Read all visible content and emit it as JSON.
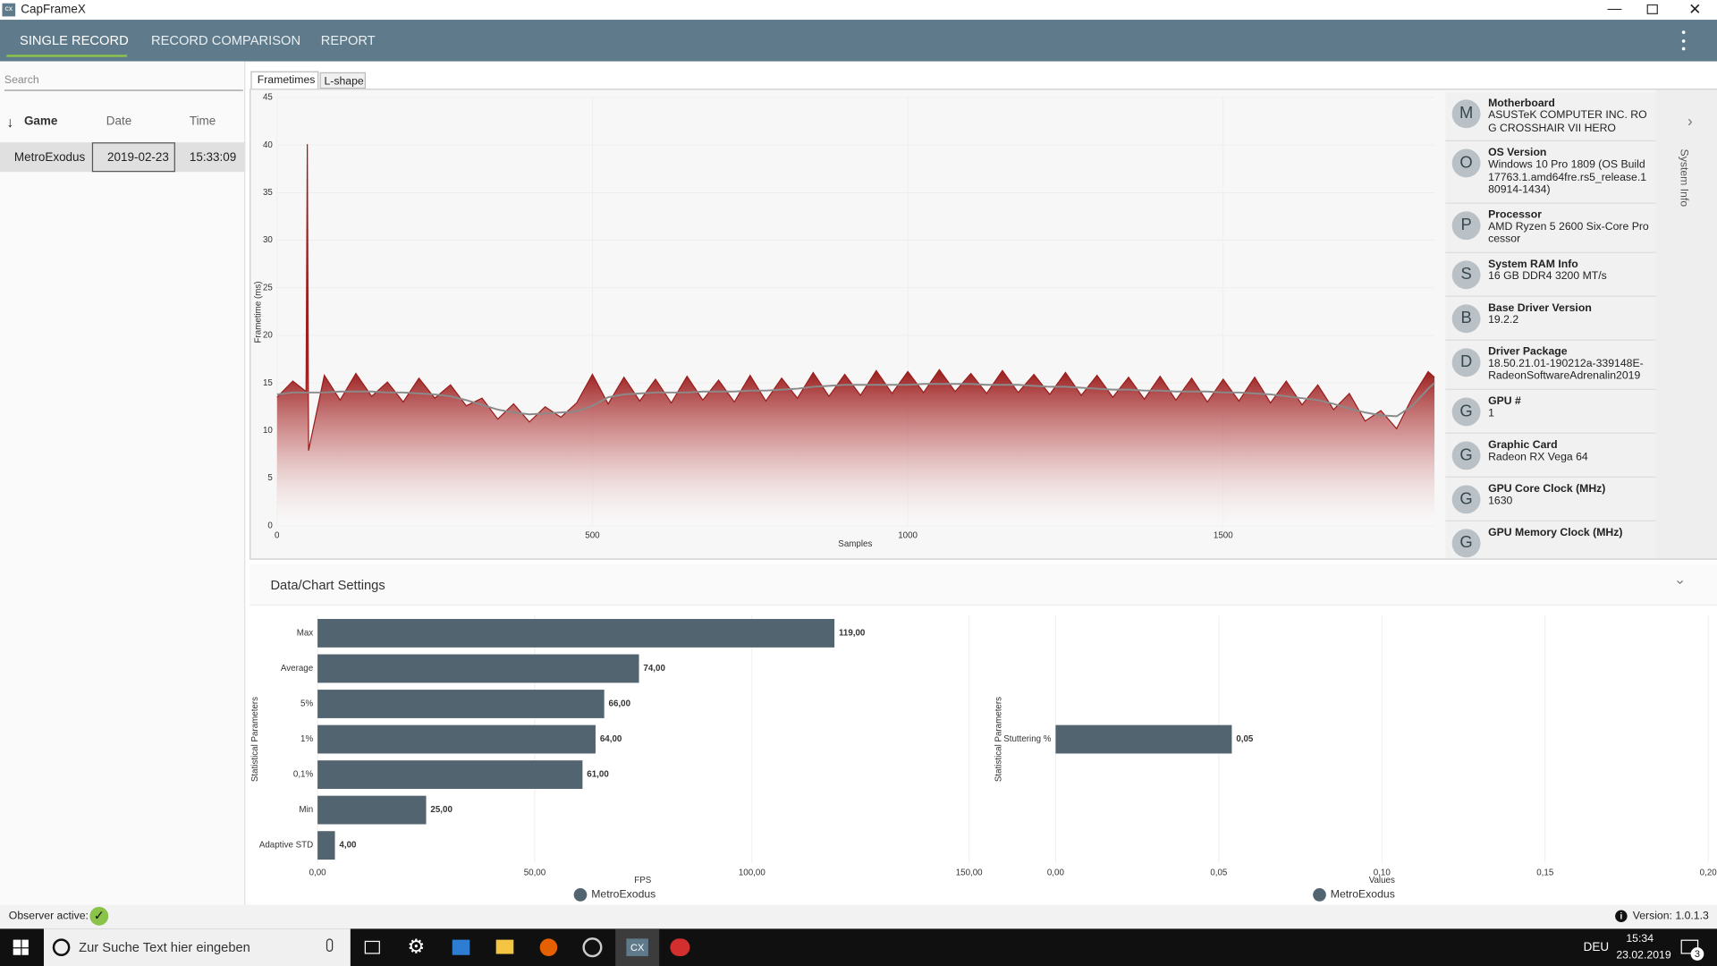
{
  "window": {
    "title": "CapFrameX"
  },
  "nav": {
    "tabs": [
      "SINGLE RECORD",
      "RECORD COMPARISON",
      "REPORT"
    ]
  },
  "sidebar": {
    "search": "Search",
    "columns": [
      "Game",
      "Date",
      "Time"
    ],
    "rows": [
      [
        "MetroExodus",
        "2019-02-23",
        "15:33:09"
      ]
    ]
  },
  "chart_tabs": [
    "Frametimes",
    "L-shape"
  ],
  "system_info": {
    "title": "System Info",
    "items": [
      {
        "icon": "M",
        "label": "Motherboard",
        "value": "ASUSTeK COMPUTER INC. ROG CROSSHAIR VII HERO"
      },
      {
        "icon": "O",
        "label": "OS Version",
        "value": "Windows 10 Pro 1809 (OS Build 17763.1.amd64fre.rs5_release.180914-1434)"
      },
      {
        "icon": "P",
        "label": "Processor",
        "value": "AMD Ryzen 5 2600 Six-Core Processor"
      },
      {
        "icon": "S",
        "label": "System RAM Info",
        "value": "16 GB DDR4 3200 MT/s"
      },
      {
        "icon": "B",
        "label": "Base Driver Version",
        "value": "19.2.2"
      },
      {
        "icon": "D",
        "label": "Driver Package",
        "value": "18.50.21.01-190212a-339148E-RadeonSoftwareAdrenalin2019"
      },
      {
        "icon": "G",
        "label": "GPU #",
        "value": "1"
      },
      {
        "icon": "G",
        "label": "Graphic Card",
        "value": "Radeon RX Vega 64"
      },
      {
        "icon": "G",
        "label": "GPU Core Clock (MHz)",
        "value": "1630"
      },
      {
        "icon": "G",
        "label": "GPU Memory Clock (MHz)"
      }
    ]
  },
  "settings": {
    "title": "Data/Chart Settings"
  },
  "chart_data": [
    {
      "type": "line",
      "x_label": "Samples",
      "y_label": "Frametime (ms)",
      "grid": true,
      "x": [
        0,
        25,
        46,
        48,
        50,
        75,
        100,
        125,
        150,
        175,
        200,
        225,
        250,
        275,
        300,
        325,
        350,
        375,
        400,
        425,
        450,
        475,
        500,
        525,
        550,
        575,
        600,
        625,
        650,
        675,
        700,
        725,
        750,
        775,
        800,
        825,
        850,
        875,
        900,
        925,
        950,
        975,
        1000,
        1025,
        1050,
        1075,
        1100,
        1125,
        1150,
        1175,
        1200,
        1225,
        1250,
        1275,
        1300,
        1325,
        1350,
        1375,
        1400,
        1425,
        1450,
        1475,
        1500,
        1525,
        1550,
        1575,
        1600,
        1625,
        1650,
        1675,
        1700,
        1725,
        1750,
        1775,
        1800,
        1825,
        1835
      ],
      "series": [
        {
          "color": "#9b1c1c",
          "values": [
            13.5,
            15.2,
            14.1,
            40.1,
            7.9,
            15.8,
            13.2,
            16.0,
            13.6,
            15.1,
            13.0,
            15.5,
            13.4,
            14.8,
            12.6,
            13.4,
            11.2,
            12.8,
            10.9,
            12.5,
            11.4,
            12.9,
            15.9,
            12.8,
            15.6,
            13.1,
            15.4,
            12.9,
            15.7,
            13.2,
            15.3,
            13.0,
            15.8,
            13.1,
            15.5,
            13.4,
            16.1,
            13.6,
            15.9,
            13.7,
            16.3,
            13.9,
            16.2,
            14.0,
            16.4,
            14.1,
            16.0,
            13.9,
            16.3,
            14.0,
            15.9,
            13.8,
            16.1,
            13.7,
            15.8,
            13.5,
            15.6,
            13.3,
            15.7,
            13.2,
            15.5,
            13.0,
            15.4,
            13.1,
            15.6,
            12.9,
            15.2,
            12.7,
            14.8,
            12.2,
            13.9,
            11.0,
            12.1,
            10.2,
            13.5,
            16.2,
            15.6
          ]
        },
        {
          "color": "#8a8a8a",
          "values": [
            13.8,
            14.0,
            14.0,
            14.0,
            14.0,
            14.0,
            14.1,
            14.1,
            14.1,
            14.0,
            14.0,
            13.9,
            13.8,
            13.6,
            13.2,
            12.7,
            12.2,
            11.9,
            11.7,
            11.8,
            11.9,
            12.0,
            12.6,
            13.5,
            13.8,
            13.9,
            14.0,
            14.0,
            14.0,
            14.1,
            14.1,
            14.1,
            14.2,
            14.2,
            14.3,
            14.4,
            14.6,
            14.7,
            14.8,
            14.8,
            14.8,
            14.8,
            14.8,
            14.9,
            14.9,
            14.9,
            14.9,
            14.8,
            14.8,
            14.8,
            14.7,
            14.6,
            14.6,
            14.5,
            14.4,
            14.3,
            14.3,
            14.2,
            14.2,
            14.1,
            14.1,
            14.1,
            14.0,
            14.0,
            13.9,
            13.8,
            13.6,
            13.4,
            13.2,
            12.8,
            12.3,
            11.9,
            11.6,
            11.5,
            12.6,
            14.4,
            15.0
          ]
        }
      ],
      "xlim": [
        0,
        1835
      ],
      "xticks": [
        0,
        500,
        1000,
        1500
      ],
      "ylim": [
        0,
        45
      ],
      "yticks": [
        0,
        5,
        10,
        15,
        20,
        25,
        30,
        35,
        40,
        45
      ]
    },
    {
      "type": "bar",
      "orientation": "horizontal",
      "x_label": "FPS",
      "y_label": "Statistical Parameters",
      "categories": [
        "Max",
        "Average",
        "5%",
        "1%",
        "0,1%",
        "Min",
        "Adaptive STD"
      ],
      "series": [
        {
          "name": "MetroExodus",
          "color": "#536471",
          "values": [
            119,
            74,
            66,
            64,
            61,
            25,
            4
          ],
          "value_labels": [
            "119,00",
            "74,00",
            "66,00",
            "64,00",
            "61,00",
            "25,00",
            "4,00"
          ]
        }
      ],
      "xlim": [
        0,
        150
      ],
      "xticks": [
        {
          "value": 0,
          "label": "0,00"
        },
        {
          "value": 50,
          "label": "50,00"
        },
        {
          "value": 100,
          "label": "100,00"
        },
        {
          "value": 150,
          "label": "150,00"
        }
      ]
    },
    {
      "type": "bar",
      "orientation": "horizontal",
      "x_label": "Values",
      "y_label": "Statistical Parameters",
      "categories": [
        "Stuttering %"
      ],
      "series": [
        {
          "name": "MetroExodus",
          "color": "#536471",
          "values": [
            0.054
          ],
          "value_labels": [
            "0,05"
          ]
        }
      ],
      "xlim": [
        0,
        0.2
      ],
      "xticks": [
        {
          "value": 0,
          "label": "0,00"
        },
        {
          "value": 0.05,
          "label": "0,05"
        },
        {
          "value": 0.1,
          "label": "0,10"
        },
        {
          "value": 0.15,
          "label": "0,15"
        },
        {
          "value": 0.2,
          "label": "0,20"
        }
      ]
    }
  ],
  "status": {
    "observer": "Observer active:",
    "version": "Version: 1.0.1.3"
  },
  "taskbar": {
    "search": "Zur Suche Text hier eingeben",
    "language": "DEU",
    "time": "15:34",
    "date": "23.02.2019",
    "notifications": 3
  }
}
